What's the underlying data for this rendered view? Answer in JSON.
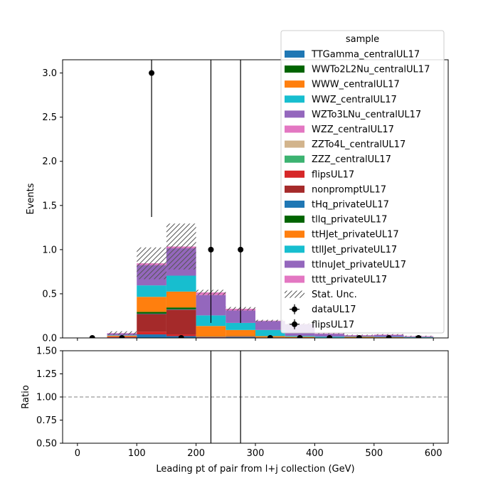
{
  "chart_data": {
    "type": "bar",
    "stacked": true,
    "xlabel": "Leading pt of pair from l+j collection (GeV)",
    "ylabel": "Events",
    "ratio_ylabel": "Ratio",
    "xlim": [
      -25,
      625
    ],
    "ylim": [
      0,
      3.15
    ],
    "ratio_ylim": [
      0.5,
      1.5
    ],
    "xticks": [
      0,
      100,
      200,
      300,
      400,
      500,
      600
    ],
    "yticks": [
      0.0,
      0.5,
      1.0,
      1.5,
      2.0,
      2.5,
      3.0
    ],
    "ratio_yticks": [
      0.5,
      0.75,
      1.0,
      1.25,
      1.5
    ],
    "xtick_labels": [
      "0",
      "100",
      "200",
      "300",
      "400",
      "500",
      "600"
    ],
    "ytick_labels": [
      "0.0",
      "0.5",
      "1.0",
      "1.5",
      "2.0",
      "2.5",
      "3.0"
    ],
    "ratio_ytick_labels": [
      "0.50",
      "0.75",
      "1.00",
      "1.25",
      "1.50"
    ],
    "bin_edges": [
      0,
      50,
      100,
      150,
      200,
      250,
      300,
      350,
      400,
      450,
      500,
      550,
      600
    ],
    "legend_title": "sample",
    "legend_position": "upper right",
    "series": [
      {
        "name": "TTGamma_centralUL17",
        "color": "#1f77b4",
        "values": [
          0,
          0.005,
          0.04,
          0.02,
          0.005,
          0.01,
          0.005,
          0.003,
          0,
          0.002,
          0.003,
          0
        ]
      },
      {
        "name": "WWTo2L2Nu_centralUL17",
        "color": "#006400",
        "values": [
          0,
          0,
          0,
          0,
          0,
          0,
          0,
          0,
          0,
          0,
          0,
          0
        ]
      },
      {
        "name": "WWW_centralUL17",
        "color": "#ff7f0e",
        "values": [
          0,
          0,
          0,
          0,
          0,
          0,
          0,
          0,
          0,
          0,
          0,
          0
        ]
      },
      {
        "name": "WWZ_centralUL17",
        "color": "#17becf",
        "values": [
          0,
          0,
          0,
          0,
          0,
          0,
          0,
          0,
          0,
          0,
          0,
          0
        ]
      },
      {
        "name": "WZTo3LNu_centralUL17",
        "color": "#9467bd",
        "values": [
          0,
          0,
          0,
          0,
          0,
          0,
          0,
          0,
          0,
          0,
          0,
          0
        ]
      },
      {
        "name": "WZZ_centralUL17",
        "color": "#e377c2",
        "values": [
          0,
          0,
          0,
          0,
          0,
          0,
          0,
          0,
          0,
          0,
          0,
          0
        ]
      },
      {
        "name": "ZZTo4L_centralUL17",
        "color": "#d2b48c",
        "values": [
          0,
          0,
          0,
          0,
          0,
          0,
          0,
          0,
          0,
          0,
          0,
          0
        ]
      },
      {
        "name": "ZZZ_centralUL17",
        "color": "#3cb371",
        "values": [
          0,
          0,
          0,
          0,
          0,
          0,
          0,
          0,
          0,
          0,
          0,
          0
        ]
      },
      {
        "name": "flipsUL17",
        "color": "#d62728",
        "values": [
          0,
          0.005,
          0.03,
          0.02,
          0.005,
          0.005,
          0,
          0,
          0,
          0,
          0,
          0
        ]
      },
      {
        "name": "nonpromptUL17",
        "color": "#a52a2a",
        "values": [
          0,
          0.005,
          0.2,
          0.28,
          0,
          0,
          0,
          0,
          0,
          0,
          0,
          0
        ]
      },
      {
        "name": "tHq_privateUL17",
        "color": "#1f77b4",
        "values": [
          0,
          0,
          0.005,
          0.005,
          0.003,
          0.003,
          0,
          0,
          0,
          0,
          0,
          0
        ]
      },
      {
        "name": "tllq_privateUL17",
        "color": "#006400",
        "values": [
          0,
          0,
          0.02,
          0.02,
          0.002,
          0.002,
          0,
          0,
          0,
          0,
          0,
          0
        ]
      },
      {
        "name": "ttHJet_privateUL17",
        "color": "#ff7f0e",
        "values": [
          0,
          0.01,
          0.17,
          0.18,
          0.12,
          0.07,
          0.015,
          0.01,
          0.005,
          0.01,
          0.005,
          0.005
        ]
      },
      {
        "name": "ttllJet_privateUL17",
        "color": "#17becf",
        "values": [
          0,
          0.005,
          0.13,
          0.18,
          0.12,
          0.08,
          0.07,
          0.01,
          0.01,
          0.005,
          0.005,
          0.005
        ]
      },
      {
        "name": "ttlnuJet_privateUL17",
        "color": "#9467bd",
        "values": [
          0,
          0.02,
          0.23,
          0.31,
          0.23,
          0.14,
          0.1,
          0.13,
          0.03,
          0.01,
          0.02,
          0.005
        ]
      },
      {
        "name": "tttt_privateUL17",
        "color": "#e377c2",
        "values": [
          0,
          0.005,
          0.02,
          0.02,
          0.03,
          0.02,
          0.005,
          0.005,
          0.005,
          0.005,
          0.005,
          0.005
        ]
      }
    ],
    "stat_unc": {
      "name": "Stat. Unc.",
      "half_widths": [
        0,
        0.02,
        0.18,
        0.26,
        0.03,
        0.02,
        0.01,
        0.01,
        0.005,
        0.005,
        0.005,
        0.005
      ]
    },
    "data": [
      {
        "name": "dataUL17",
        "x": [
          25,
          75,
          125,
          175,
          225,
          275,
          325,
          375,
          425,
          475,
          525,
          575
        ],
        "y": [
          0,
          0,
          3,
          0,
          1,
          1,
          0,
          0,
          0,
          0,
          0,
          0
        ],
        "yerr_low": [
          0,
          0,
          1.63,
          0,
          0.83,
          0.83,
          0,
          0,
          0,
          0,
          0,
          0
        ],
        "yerr_high": [
          0,
          0,
          2.92,
          0,
          2.3,
          2.3,
          0,
          0,
          0,
          0,
          0,
          0
        ]
      },
      {
        "name": "flipsUL17"
      }
    ],
    "ratio_reference": 1.0
  }
}
